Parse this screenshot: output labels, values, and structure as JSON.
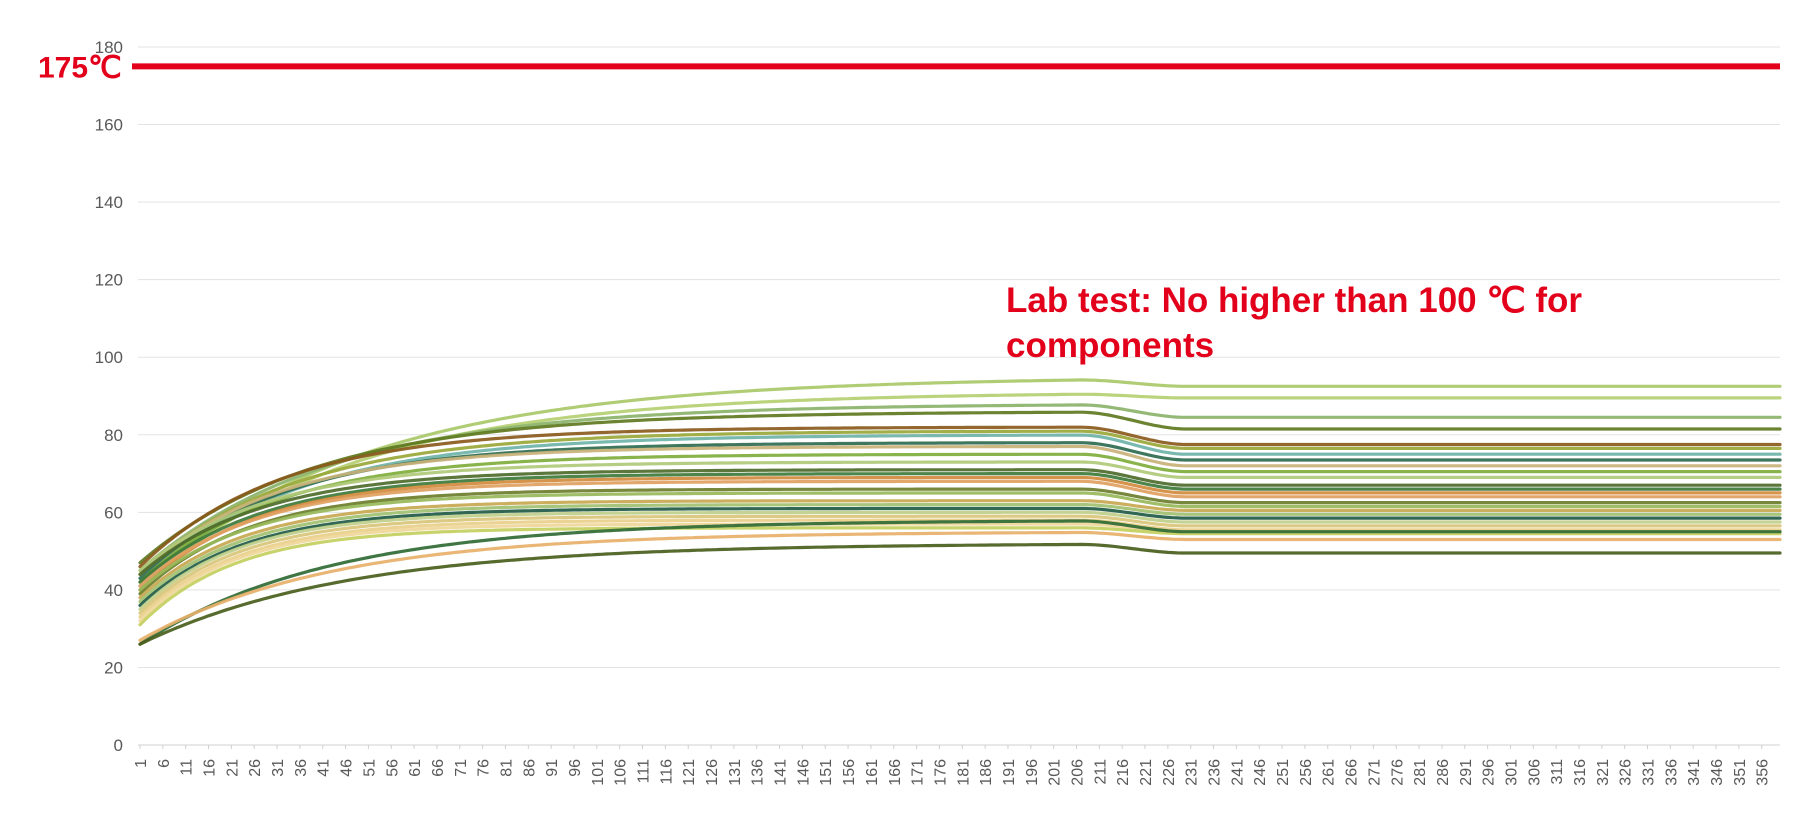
{
  "chart_data": {
    "type": "line",
    "title": "",
    "xlabel": "",
    "ylabel": "",
    "ylim": [
      0,
      180
    ],
    "yticks": [
      "0",
      "20",
      "40",
      "60",
      "80",
      "100",
      "120",
      "140",
      "160",
      "180"
    ],
    "x_range": [
      1,
      360
    ],
    "x_tick_start": 1,
    "x_tick_step": 5,
    "x_tick_count": 72,
    "grid": "horizontal",
    "legend": "none",
    "limit_line": {
      "value": 175,
      "label": "175℃",
      "color": "#e3001b"
    },
    "annotation": "Lab test: No higher than 100 ℃ for components",
    "series_profile": {
      "description": "temperature rise curves",
      "knee_x": 207,
      "settle_x": 230
    },
    "series": [
      {
        "start": 42,
        "plateau": 95,
        "end": 92.5,
        "k": 0.02,
        "color": "#a9c96a"
      },
      {
        "start": 40,
        "plateau": 91,
        "end": 89.5,
        "k": 0.022,
        "color": "#b5cf72"
      },
      {
        "start": 45,
        "plateau": 88,
        "end": 84.5,
        "k": 0.024,
        "color": "#8bb36a"
      },
      {
        "start": 47,
        "plateau": 86,
        "end": 81.5,
        "k": 0.026,
        "color": "#5f7a1f"
      },
      {
        "start": 46,
        "plateau": 82,
        "end": 77.5,
        "k": 0.032,
        "color": "#8a5a1c"
      },
      {
        "start": 44,
        "plateau": 81,
        "end": 76.5,
        "k": 0.03,
        "color": "#9aa83a"
      },
      {
        "start": 41,
        "plateau": 80,
        "end": 75.0,
        "k": 0.03,
        "color": "#6fb3a8"
      },
      {
        "start": 43,
        "plateau": 78,
        "end": 73.5,
        "k": 0.032,
        "color": "#2e6b4f"
      },
      {
        "start": 44,
        "plateau": 77,
        "end": 72.0,
        "k": 0.034,
        "color": "#c9b27a"
      },
      {
        "start": 42,
        "plateau": 75,
        "end": 70.5,
        "k": 0.034,
        "color": "#7fae3c"
      },
      {
        "start": 45,
        "plateau": 73,
        "end": 69.0,
        "k": 0.036,
        "color": "#b0c97a"
      },
      {
        "start": 44,
        "plateau": 71,
        "end": 67.0,
        "k": 0.038,
        "color": "#4e6b2a"
      },
      {
        "start": 42,
        "plateau": 70,
        "end": 66.0,
        "k": 0.038,
        "color": "#3d7a3a"
      },
      {
        "start": 40,
        "plateau": 69,
        "end": 65.0,
        "k": 0.04,
        "color": "#d28a3c"
      },
      {
        "start": 41,
        "plateau": 68,
        "end": 64.0,
        "k": 0.04,
        "color": "#e0a060"
      },
      {
        "start": 39,
        "plateau": 66,
        "end": 62.5,
        "k": 0.042,
        "color": "#6b7d2a"
      },
      {
        "start": 40,
        "plateau": 65,
        "end": 61.5,
        "k": 0.042,
        "color": "#98b85a"
      },
      {
        "start": 38,
        "plateau": 63,
        "end": 60.5,
        "k": 0.044,
        "color": "#c8a850"
      },
      {
        "start": 37,
        "plateau": 62,
        "end": 59.5,
        "k": 0.044,
        "color": "#a0c070"
      },
      {
        "start": 36,
        "plateau": 61,
        "end": 58.5,
        "k": 0.044,
        "color": "#1f5a44"
      },
      {
        "start": 35,
        "plateau": 60,
        "end": 57.5,
        "k": 0.046,
        "color": "#bfcf8a"
      },
      {
        "start": 34,
        "plateau": 59,
        "end": 56.5,
        "k": 0.046,
        "color": "#d9c57a"
      },
      {
        "start": 33,
        "plateau": 58,
        "end": 55.5,
        "k": 0.046,
        "color": "#e8cf8a"
      },
      {
        "start": 32,
        "plateau": 57,
        "end": 55.0,
        "k": 0.048,
        "color": "#f0d79a"
      },
      {
        "start": 31,
        "plateau": 56,
        "end": 54.5,
        "k": 0.048,
        "color": "#c4cf60"
      },
      {
        "start": 26,
        "plateau": 58,
        "end": 55.0,
        "k": 0.024,
        "color": "#2f6a34"
      },
      {
        "start": 27,
        "plateau": 55,
        "end": 53.0,
        "k": 0.024,
        "color": "#e7b06a"
      },
      {
        "start": 26,
        "plateau": 52,
        "end": 49.5,
        "k": 0.022,
        "color": "#4a5e1c"
      }
    ]
  }
}
